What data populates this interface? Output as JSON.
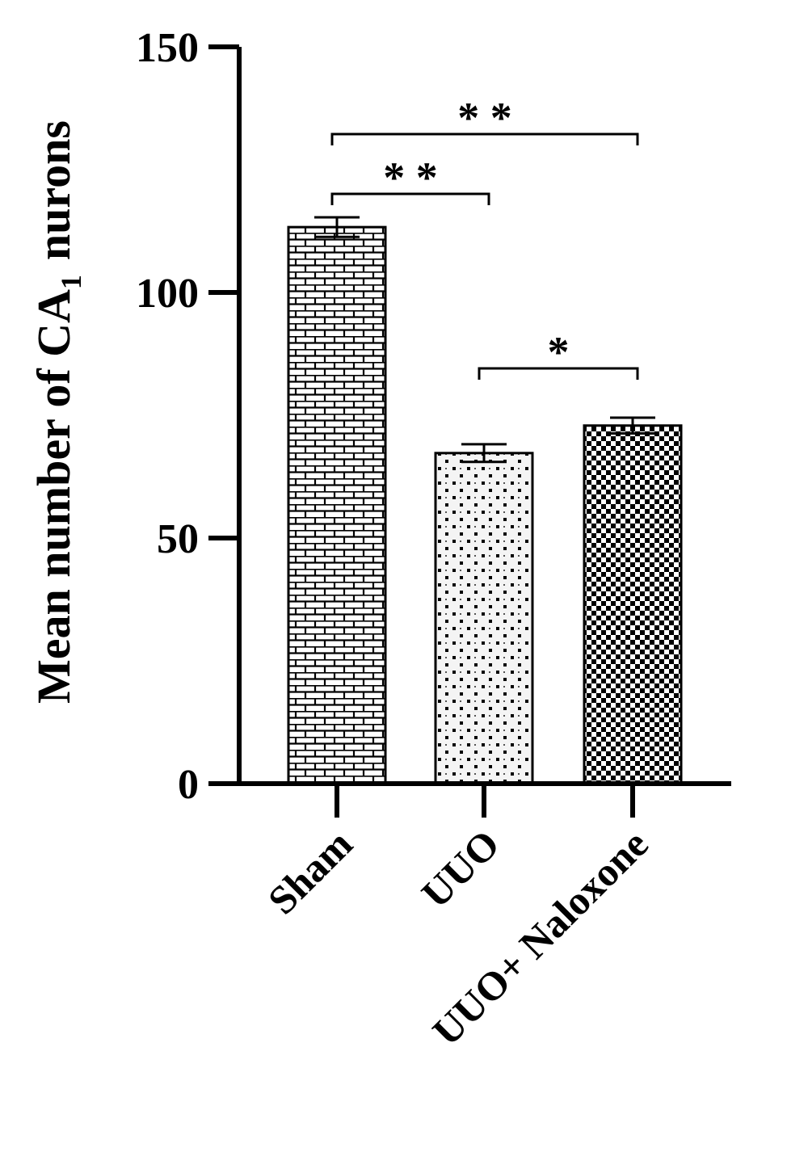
{
  "chart_data": {
    "type": "bar",
    "y_label": [
      "Mean number of CA",
      "1",
      "nurons"
    ],
    "categories": [
      "Sham",
      "UUO",
      "UUO+ Naloxone"
    ],
    "values": [
      113.3,
      67.3,
      72.9
    ],
    "errors": [
      2,
      1.8,
      1.6
    ],
    "patterns": [
      "brick",
      "dots",
      "checker"
    ],
    "ylim": [
      0,
      150
    ],
    "yticks": [
      0,
      50,
      100,
      150
    ],
    "annotations": [
      "* *",
      "* *",
      "*"
    ]
  }
}
